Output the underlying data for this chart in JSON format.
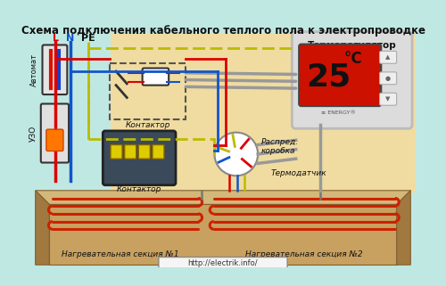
{
  "title": "Схема подключения кабельного теплого пола к электропроводке",
  "url": "http://electrik.info/",
  "bg_outer": "#c0e8e2",
  "bg_inner_right": "#f0dca0",
  "floor_top": "#d4b87a",
  "floor_face": "#c8a060",
  "floor_side": "#a07840",
  "cable_color": "#cc2200",
  "label_avtomat": "Автомат",
  "label_uzo": "УЗО",
  "label_kontaktor1": "Контактор",
  "label_kontaktor2": "Контактор",
  "label_raspred": "Распред.\nкоробка",
  "label_termoreg": "Терморегулятор",
  "label_termodatchik": "Термодатчик",
  "label_section1": "Нагревательная секция №1",
  "label_section2": "Нагревательная секция №2",
  "label_L": "L",
  "label_N": "N",
  "label_PE": "PE",
  "color_L": "#dd0000",
  "color_N": "#1155cc",
  "color_yg": "#bbbb00",
  "color_gray": "#999999",
  "figsize": [
    5.0,
    3.21
  ],
  "dpi": 100
}
